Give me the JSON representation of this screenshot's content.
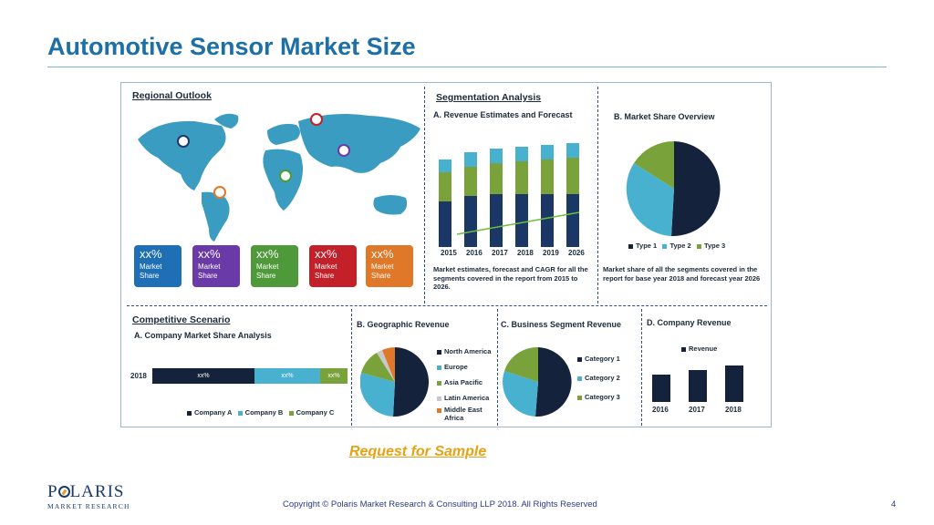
{
  "title": "Automotive Sensor Market Size",
  "request_link": "Request for Sample",
  "logo": {
    "name_part1": "P",
    "name_part2": "LARIS",
    "subtitle": "MARKET RESEARCH"
  },
  "copyright": "Copyright © Polaris Market Research & Consulting LLP 2018. All Rights Reserved",
  "page_number": "4",
  "colors": {
    "navy": "#14233b",
    "teal": "#48b1cf",
    "green": "#79a23a",
    "title_blue": "#1d6fa6",
    "link_orange": "#e8a113"
  },
  "regional": {
    "heading": "Regional Outlook",
    "cards": [
      {
        "pct": "xx%",
        "label1": "Market",
        "label2": "Share",
        "color": "#1e6fb5"
      },
      {
        "pct": "xx%",
        "label1": "Market",
        "label2": "Share",
        "color": "#6a3aa8"
      },
      {
        "pct": "xx%",
        "label1": "Market",
        "label2": "Share",
        "color": "#4e9a3a"
      },
      {
        "pct": "xx%",
        "label1": "Market",
        "label2": "Share",
        "color": "#c4202a"
      },
      {
        "pct": "xx%",
        "label1": "Market",
        "label2": "Share",
        "color": "#e0782a"
      }
    ]
  },
  "segmentation": {
    "heading": "Segmentation Analysis",
    "revenue_title": "A. Revenue Estimates and Forecast",
    "revenue_years": [
      "2015",
      "2016",
      "2017",
      "2018",
      "2019",
      "2026"
    ],
    "revenue_note": "Market estimates, forecast and CAGR for all the segments covered in the report from 2015 to 2026.",
    "share_title": "B. Market Share Overview",
    "share_legend": [
      "Type 1",
      "Type 2",
      "Type 3"
    ],
    "share_note": "Market share of all the segments covered in the report for base year 2018 and forecast year 2026"
  },
  "competitive": {
    "heading": "Competitive Scenario",
    "subtitle": "A. Company Market Share Analysis",
    "row_label": "2018",
    "segments": [
      "xx%",
      "xx%",
      "xx%"
    ],
    "legend": [
      "Company A",
      "Company B",
      "Company C"
    ]
  },
  "geographic": {
    "title": "B. Geographic Revenue",
    "legend": [
      "North America",
      "Europe",
      "Asia Pacific",
      "Latin America",
      "Middle East",
      "Africa"
    ]
  },
  "business": {
    "title": "C. Business Segment Revenue",
    "legend": [
      "Category 1",
      "Category 2",
      "Category 3"
    ]
  },
  "company_revenue": {
    "title": "D. Company Revenue",
    "legend": "Revenue",
    "years": [
      "2016",
      "2017",
      "2018"
    ]
  }
}
